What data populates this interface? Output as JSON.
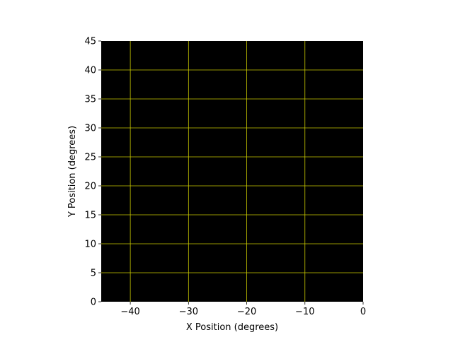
{
  "chart_data": {
    "type": "scatter",
    "title": "",
    "xlabel": "X Position (degrees)",
    "ylabel": "Y Position (degrees)",
    "xlim": [
      -45,
      0
    ],
    "ylim": [
      0,
      45
    ],
    "xticks": [
      -40,
      -30,
      -20,
      -10,
      0
    ],
    "yticks": [
      0,
      5,
      10,
      15,
      20,
      25,
      30,
      35,
      40,
      45
    ],
    "grid": true,
    "series": [],
    "colors": {
      "background": "#000000",
      "grid": "#c8c800"
    }
  }
}
